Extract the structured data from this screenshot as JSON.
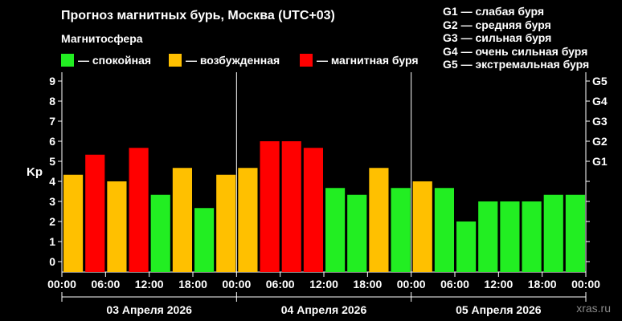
{
  "header": {
    "title": "Прогноз магнитных бурь, Москва (UTC+03)",
    "magnetosphere_title": "Магнитосфера"
  },
  "legend": [
    {
      "label": "— спокойная",
      "color": "#22ee22"
    },
    {
      "label": "— возбужденная",
      "color": "#ffc000"
    },
    {
      "label": "— магнитная буря",
      "color": "#ff0000"
    }
  ],
  "storm_legend": [
    "G1 — слабая буря",
    "G2 — средняя буря",
    "G3 — сильная буря",
    "G4 — очень сильная буря",
    "G5 — экстремальная буря"
  ],
  "watermark": "xras.ru",
  "chart_data": {
    "type": "bar",
    "ylabel": "Kp",
    "ylim": [
      0,
      9
    ],
    "y_ticks": [
      "0",
      "1",
      "2",
      "3",
      "4",
      "5",
      "6",
      "7",
      "8",
      "9"
    ],
    "g_ticks": [
      {
        "label": "G1",
        "value": 5
      },
      {
        "label": "G2",
        "value": 6
      },
      {
        "label": "G3",
        "value": 7
      },
      {
        "label": "G4",
        "value": 8
      },
      {
        "label": "G5",
        "value": 9
      }
    ],
    "x_ticks": [
      "00:00",
      "06:00",
      "12:00",
      "18:00",
      "00:00",
      "06:00",
      "12:00",
      "18:00",
      "00:00",
      "06:00",
      "12:00",
      "18:00",
      "00:00"
    ],
    "days": [
      "03 Апреля 2026",
      "04 Апреля 2026",
      "05 Апреля 2026"
    ],
    "values": [
      4.33,
      5.33,
      4.0,
      5.67,
      3.33,
      4.67,
      2.67,
      4.33,
      4.67,
      6.0,
      6.0,
      5.67,
      3.67,
      3.33,
      4.67,
      3.67,
      4.0,
      3.67,
      2.0,
      3.0,
      3.0,
      3.0,
      3.33,
      3.33
    ],
    "levels": [
      "active",
      "storm",
      "active",
      "storm",
      "quiet",
      "active",
      "quiet",
      "active",
      "active",
      "storm",
      "storm",
      "storm",
      "quiet",
      "quiet",
      "active",
      "quiet",
      "active",
      "quiet",
      "quiet",
      "quiet",
      "quiet",
      "quiet",
      "quiet",
      "quiet"
    ],
    "level_colors": {
      "quiet": "#22ee22",
      "active": "#ffc000",
      "storm": "#ff0000"
    },
    "grid": false
  }
}
